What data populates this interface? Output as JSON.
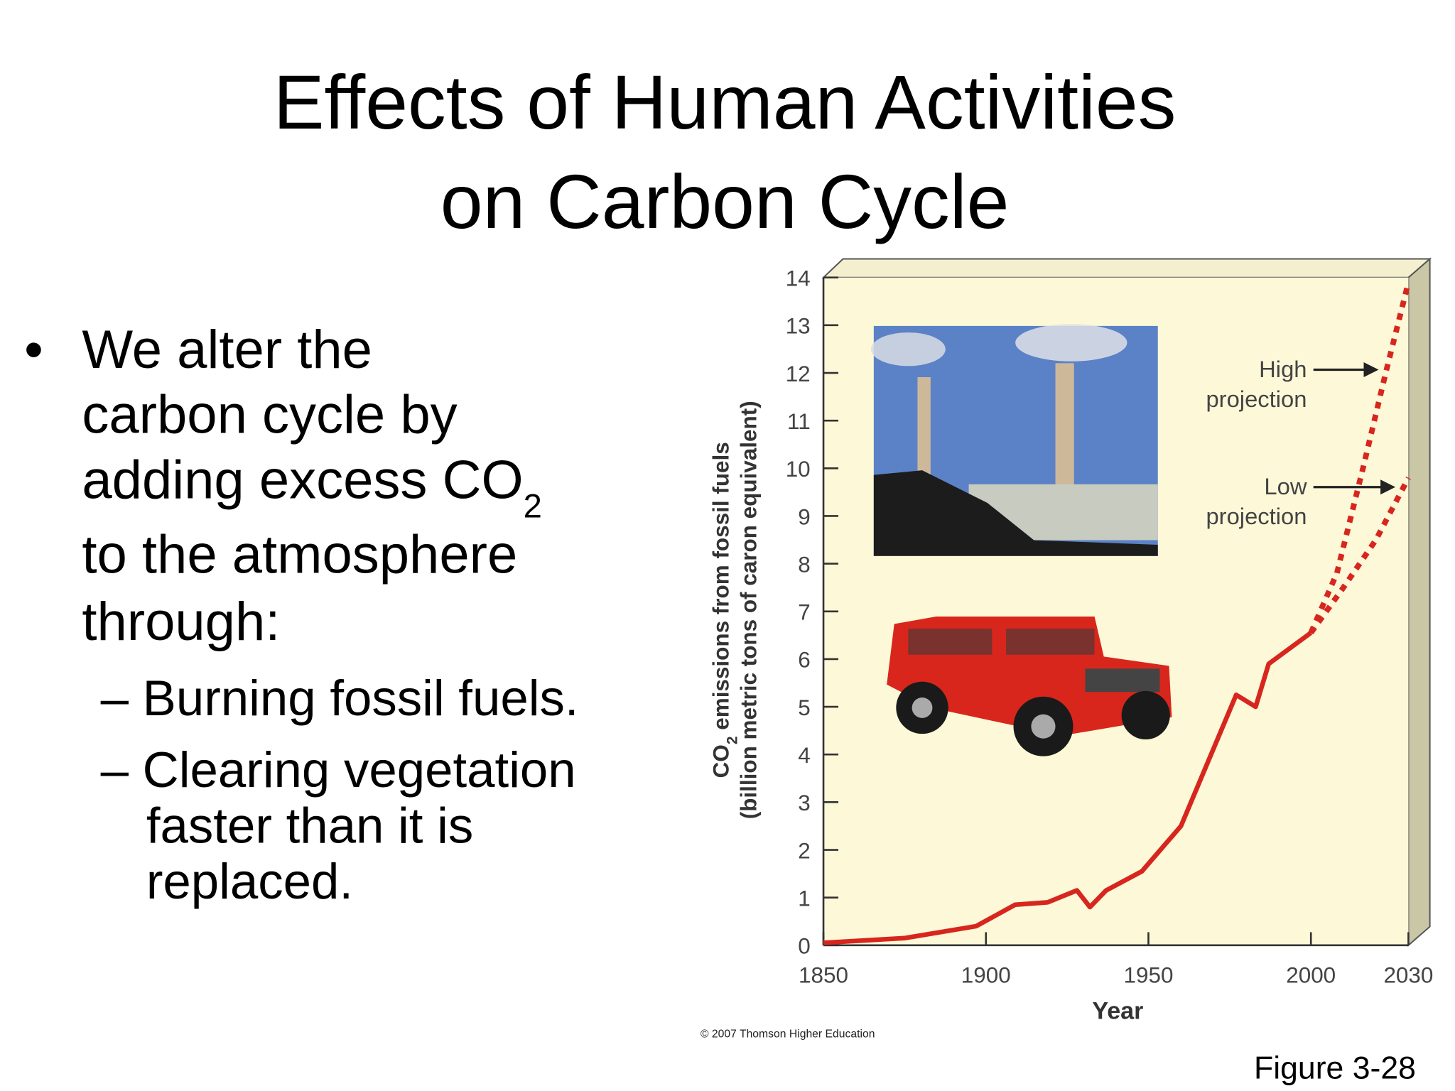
{
  "title": [
    "Effects of Human Activities",
    "on Carbon Cycle"
  ],
  "bullet_marker": "•",
  "bullet": [
    [
      "We alter the"
    ],
    [
      "carbon cycle by"
    ],
    [
      "adding excess CO",
      "2"
    ],
    [
      "to the atmosphere"
    ],
    [
      "through:"
    ]
  ],
  "sub_bullets": [
    [
      "– Burning fossil fuels."
    ],
    [
      "– Clearing vegetation",
      "faster than it is",
      "replaced."
    ]
  ],
  "credit": "© 2007 Thomson Higher Education",
  "figure_label": "Figure 3-28",
  "chart_data": {
    "type": "line",
    "ylabel": [
      [
        "CO",
        "2",
        " emissions from fossil fuels"
      ],
      [
        "(billion metric tons of caron equivalent)"
      ]
    ],
    "xlabel": "Year",
    "xlim": [
      1850,
      2030
    ],
    "xticks": [
      1850,
      1900,
      1950,
      2000,
      2030
    ],
    "ylim": [
      0,
      14
    ],
    "yticks": [
      0,
      1,
      2,
      3,
      4,
      5,
      6,
      7,
      8,
      9,
      10,
      11,
      12,
      13,
      14
    ],
    "series": [
      {
        "color": "#d7261e",
        "style": "solid",
        "x": [
          1850,
          1875,
          1897,
          1909,
          1919,
          1928,
          1932,
          1937,
          1948,
          1960,
          1977,
          1983,
          1987,
          2000
        ],
        "values": [
          0.05,
          0.15,
          0.4,
          0.85,
          0.9,
          1.15,
          0.8,
          1.15,
          1.55,
          2.5,
          5.25,
          5.0,
          5.9,
          6.55
        ]
      },
      {
        "color": "#d7261e",
        "style": "dashed",
        "x": [
          2000,
          2008,
          2016,
          2023,
          2030
        ],
        "values": [
          6.55,
          7.8,
          10.0,
          12.0,
          13.9
        ]
      },
      {
        "color": "#d7261e",
        "style": "dashed",
        "x": [
          2000,
          2010,
          2020,
          2030
        ],
        "values": [
          6.55,
          7.5,
          8.5,
          9.8
        ]
      }
    ],
    "annotations": [
      [
        "High",
        "projection"
      ],
      [
        "Low",
        "projection"
      ]
    ]
  }
}
